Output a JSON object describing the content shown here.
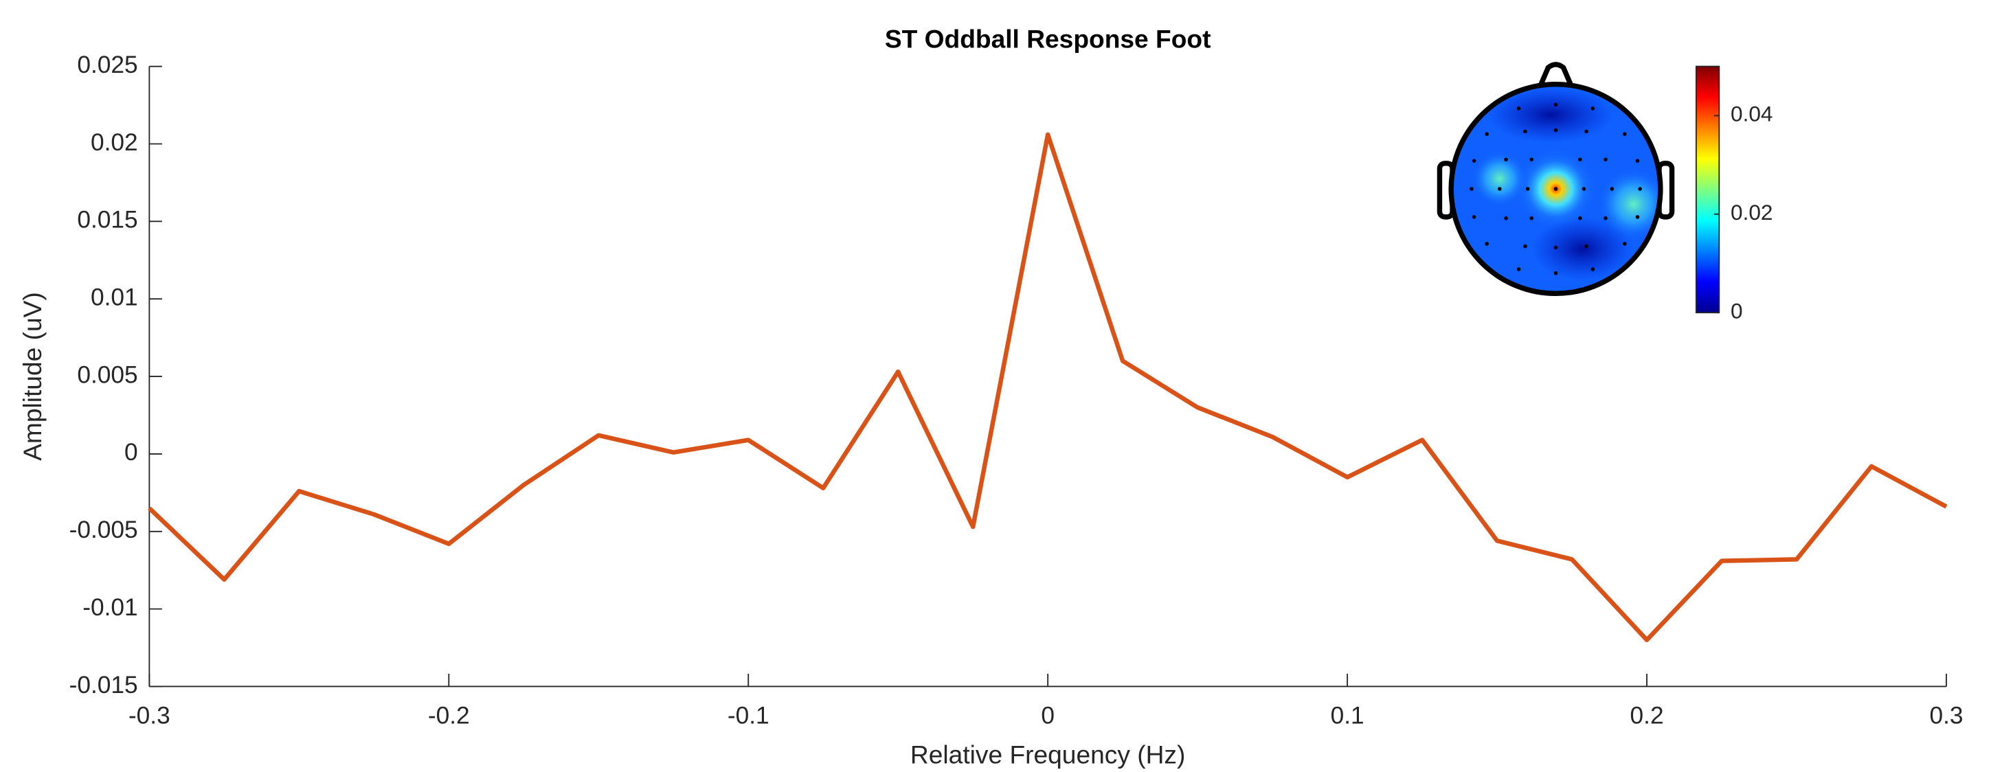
{
  "chart_data": {
    "type": "line",
    "title": "ST Oddball Response Foot",
    "xlabel": "Relative Frequency (Hz)",
    "ylabel": "Amplitude (uV)",
    "x": [
      -0.3,
      -0.275,
      -0.25,
      -0.225,
      -0.2,
      -0.175,
      -0.15,
      -0.125,
      -0.1,
      -0.075,
      -0.05,
      -0.025,
      0,
      0.025,
      0.05,
      0.075,
      0.1,
      0.125,
      0.15,
      0.175,
      0.2,
      0.225,
      0.25,
      0.275,
      0.3
    ],
    "series": [
      {
        "color": "#D95319",
        "values": [
          -0.0035,
          -0.0081,
          -0.0024,
          -0.0039,
          -0.0058,
          -0.002,
          0.0012,
          0.0001,
          0.0009,
          -0.0022,
          0.0053,
          -0.0047,
          0.0206,
          0.006,
          0.003,
          0.0011,
          -0.0015,
          0.0009,
          -0.0056,
          -0.0068,
          -0.012,
          -0.0069,
          -0.0068,
          -0.0008,
          -0.0034
        ]
      }
    ],
    "xlim": [
      -0.3,
      0.3
    ],
    "xticks": [
      -0.3,
      -0.2,
      -0.1,
      0,
      0.1,
      0.2,
      0.3
    ],
    "ylim": [
      -0.015,
      0.025
    ],
    "yticks": [
      -0.015,
      -0.01,
      -0.005,
      0,
      0.005,
      0.01,
      0.015,
      0.02,
      0.025
    ],
    "colorbar": {
      "lim": [
        0,
        0.05
      ],
      "ticks": [
        0,
        0.02,
        0.04
      ]
    }
  }
}
